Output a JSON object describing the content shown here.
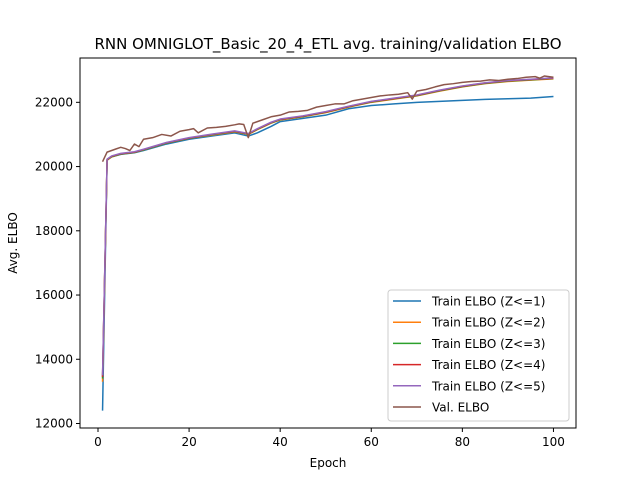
{
  "chart_data": {
    "type": "line",
    "title": "RNN OMNIGLOT_Basic_20_4_ETL avg. training/validation ELBO",
    "xlabel": "Epoch",
    "ylabel": "Avg. ELBO",
    "xlim": [
      -3.95,
      104.95
    ],
    "ylim": [
      11860,
      23380
    ],
    "xticks": [
      0,
      20,
      40,
      60,
      80,
      100
    ],
    "yticks": [
      12000,
      14000,
      16000,
      18000,
      20000,
      22000
    ],
    "grid": false,
    "legend_position": "lower-right",
    "series": [
      {
        "name": "Train ELBO (Z<=1)",
        "color": "#1f77b4",
        "points": [
          [
            1,
            12400
          ],
          [
            2,
            20200
          ],
          [
            3,
            20300
          ],
          [
            5,
            20380
          ],
          [
            8,
            20430
          ],
          [
            10,
            20500
          ],
          [
            15,
            20700
          ],
          [
            20,
            20850
          ],
          [
            25,
            20950
          ],
          [
            30,
            21050
          ],
          [
            33,
            20950
          ],
          [
            35,
            21050
          ],
          [
            38,
            21250
          ],
          [
            40,
            21400
          ],
          [
            45,
            21500
          ],
          [
            50,
            21600
          ],
          [
            55,
            21800
          ],
          [
            60,
            21900
          ],
          [
            65,
            21950
          ],
          [
            70,
            22000
          ],
          [
            75,
            22030
          ],
          [
            80,
            22060
          ],
          [
            85,
            22090
          ],
          [
            90,
            22110
          ],
          [
            95,
            22130
          ],
          [
            100,
            22180
          ]
        ]
      },
      {
        "name": "Train ELBO (Z<=2)",
        "color": "#ff7f0e",
        "points": [
          [
            1,
            13300
          ],
          [
            2,
            20200
          ],
          [
            3,
            20300
          ],
          [
            5,
            20390
          ],
          [
            8,
            20440
          ],
          [
            10,
            20520
          ],
          [
            15,
            20730
          ],
          [
            20,
            20880
          ],
          [
            25,
            20980
          ],
          [
            30,
            21080
          ],
          [
            33,
            21000
          ],
          [
            35,
            21150
          ],
          [
            38,
            21350
          ],
          [
            40,
            21450
          ],
          [
            45,
            21550
          ],
          [
            50,
            21680
          ],
          [
            55,
            21850
          ],
          [
            60,
            22000
          ],
          [
            65,
            22100
          ],
          [
            70,
            22200
          ],
          [
            75,
            22350
          ],
          [
            80,
            22480
          ],
          [
            85,
            22580
          ],
          [
            90,
            22650
          ],
          [
            95,
            22690
          ],
          [
            100,
            22730
          ]
        ]
      },
      {
        "name": "Train ELBO (Z<=3)",
        "color": "#2ca02c",
        "points": [
          [
            1,
            13400
          ],
          [
            2,
            20210
          ],
          [
            3,
            20310
          ],
          [
            5,
            20390
          ],
          [
            8,
            20440
          ],
          [
            10,
            20520
          ],
          [
            15,
            20730
          ],
          [
            20,
            20880
          ],
          [
            25,
            20990
          ],
          [
            30,
            21090
          ],
          [
            33,
            21010
          ],
          [
            35,
            21160
          ],
          [
            38,
            21360
          ],
          [
            40,
            21460
          ],
          [
            45,
            21560
          ],
          [
            50,
            21690
          ],
          [
            55,
            21860
          ],
          [
            60,
            22010
          ],
          [
            65,
            22110
          ],
          [
            70,
            22210
          ],
          [
            75,
            22360
          ],
          [
            80,
            22490
          ],
          [
            85,
            22590
          ],
          [
            90,
            22660
          ],
          [
            95,
            22700
          ],
          [
            100,
            22740
          ]
        ]
      },
      {
        "name": "Train ELBO (Z<=4)",
        "color": "#d62728",
        "points": [
          [
            1,
            13450
          ],
          [
            2,
            20220
          ],
          [
            3,
            20320
          ],
          [
            5,
            20400
          ],
          [
            8,
            20450
          ],
          [
            10,
            20530
          ],
          [
            15,
            20740
          ],
          [
            20,
            20890
          ],
          [
            25,
            21000
          ],
          [
            30,
            21100
          ],
          [
            33,
            21020
          ],
          [
            35,
            21170
          ],
          [
            38,
            21370
          ],
          [
            40,
            21470
          ],
          [
            45,
            21570
          ],
          [
            50,
            21700
          ],
          [
            55,
            21870
          ],
          [
            60,
            22020
          ],
          [
            65,
            22120
          ],
          [
            70,
            22220
          ],
          [
            75,
            22370
          ],
          [
            80,
            22500
          ],
          [
            85,
            22600
          ],
          [
            90,
            22670
          ],
          [
            95,
            22710
          ],
          [
            100,
            22750
          ]
        ]
      },
      {
        "name": "Train ELBO (Z<=5)",
        "color": "#9467bd",
        "points": [
          [
            1,
            13500
          ],
          [
            2,
            20230
          ],
          [
            3,
            20330
          ],
          [
            5,
            20410
          ],
          [
            8,
            20460
          ],
          [
            10,
            20540
          ],
          [
            15,
            20750
          ],
          [
            20,
            20900
          ],
          [
            25,
            21010
          ],
          [
            30,
            21110
          ],
          [
            33,
            21030
          ],
          [
            35,
            21180
          ],
          [
            38,
            21380
          ],
          [
            40,
            21480
          ],
          [
            45,
            21580
          ],
          [
            50,
            21710
          ],
          [
            55,
            21880
          ],
          [
            60,
            22030
          ],
          [
            65,
            22130
          ],
          [
            70,
            22230
          ],
          [
            75,
            22380
          ],
          [
            80,
            22510
          ],
          [
            85,
            22610
          ],
          [
            90,
            22680
          ],
          [
            95,
            22720
          ],
          [
            100,
            22760
          ]
        ]
      },
      {
        "name": "Val. ELBO",
        "color": "#8c564b",
        "points": [
          [
            1,
            20150
          ],
          [
            2,
            20450
          ],
          [
            3,
            20500
          ],
          [
            4,
            20550
          ],
          [
            5,
            20600
          ],
          [
            6,
            20560
          ],
          [
            7,
            20500
          ],
          [
            8,
            20700
          ],
          [
            9,
            20620
          ],
          [
            10,
            20850
          ],
          [
            12,
            20900
          ],
          [
            14,
            21000
          ],
          [
            16,
            20950
          ],
          [
            18,
            21100
          ],
          [
            20,
            21150
          ],
          [
            21,
            21180
          ],
          [
            22,
            21050
          ],
          [
            24,
            21200
          ],
          [
            26,
            21220
          ],
          [
            28,
            21250
          ],
          [
            30,
            21300
          ],
          [
            31,
            21330
          ],
          [
            32,
            21310
          ],
          [
            33,
            20900
          ],
          [
            34,
            21350
          ],
          [
            36,
            21450
          ],
          [
            38,
            21550
          ],
          [
            40,
            21600
          ],
          [
            42,
            21700
          ],
          [
            44,
            21720
          ],
          [
            46,
            21750
          ],
          [
            48,
            21850
          ],
          [
            50,
            21900
          ],
          [
            52,
            21950
          ],
          [
            54,
            21950
          ],
          [
            56,
            22050
          ],
          [
            58,
            22100
          ],
          [
            60,
            22150
          ],
          [
            62,
            22200
          ],
          [
            64,
            22230
          ],
          [
            66,
            22250
          ],
          [
            68,
            22300
          ],
          [
            69,
            22100
          ],
          [
            70,
            22350
          ],
          [
            72,
            22400
          ],
          [
            74,
            22480
          ],
          [
            76,
            22550
          ],
          [
            78,
            22580
          ],
          [
            80,
            22620
          ],
          [
            82,
            22650
          ],
          [
            84,
            22660
          ],
          [
            86,
            22700
          ],
          [
            88,
            22680
          ],
          [
            90,
            22720
          ],
          [
            92,
            22740
          ],
          [
            94,
            22780
          ],
          [
            96,
            22800
          ],
          [
            97,
            22750
          ],
          [
            98,
            22820
          ],
          [
            100,
            22780
          ]
        ]
      }
    ]
  }
}
